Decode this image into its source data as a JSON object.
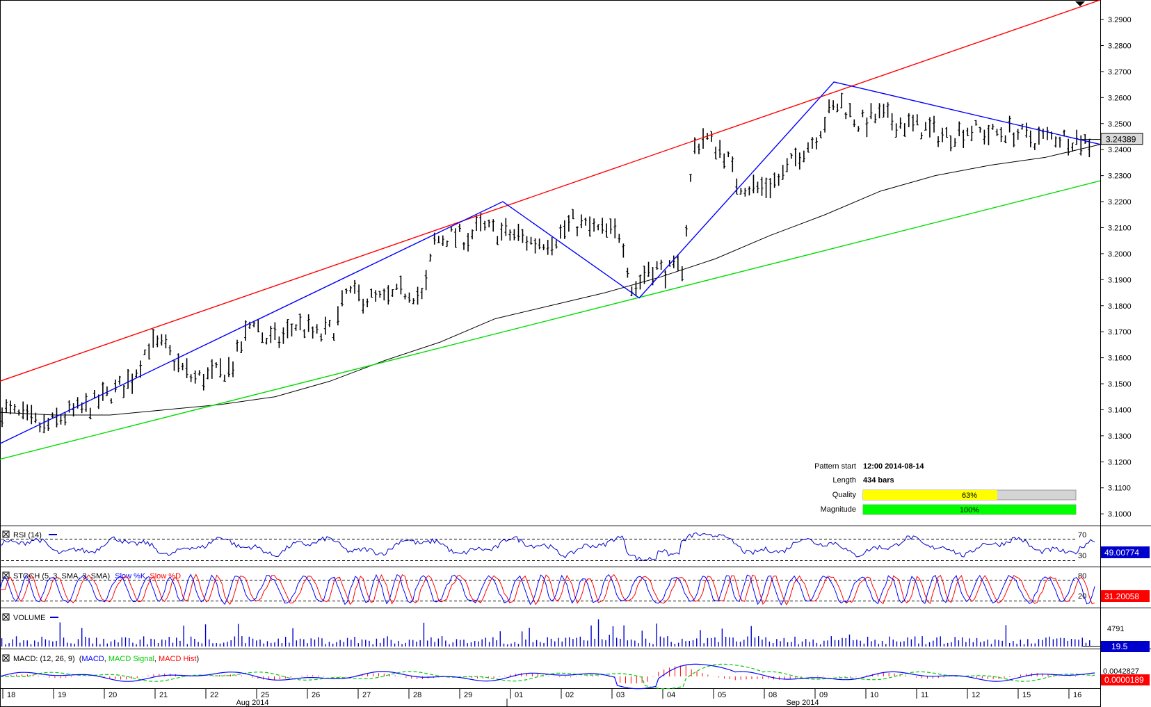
{
  "colors": {
    "channel_upper": "#ff0000",
    "channel_lower": "#00dd00",
    "pattern_line": "#0000ff",
    "moving_average": "#000000",
    "rsi_line": "#0000cc",
    "stoch_k": "#0000ff",
    "stoch_d": "#ff0000",
    "macd_line": "#0000ff",
    "macd_signal": "#00cc00",
    "macd_hist": "#ff0000",
    "quality_fill": "#ffff00",
    "magnitude_fill": "#00ff00",
    "value_box_blue": "#0000cc"
  },
  "chart_data": {
    "type": "line",
    "price_axis": {
      "ticks": [
        "3.2900",
        "3.2800",
        "3.2700",
        "3.2600",
        "3.2500",
        "3.2400",
        "3.2300",
        "3.2200",
        "3.2100",
        "3.2000",
        "3.1900",
        "3.1800",
        "3.1700",
        "3.1600",
        "3.1500",
        "3.1400",
        "3.1300",
        "3.1200",
        "3.1100",
        "3.1000"
      ],
      "ylim": [
        3.0955,
        3.2975
      ],
      "current_price_label": "3.24389",
      "current_price": 3.24389
    },
    "x_axis": {
      "day_labels": [
        "18",
        "19",
        "20",
        "21",
        "22",
        "25",
        "26",
        "27",
        "28",
        "29",
        "01",
        "02",
        "03",
        "04",
        "05",
        "08",
        "09",
        "10",
        "11",
        "12",
        "15",
        "16"
      ],
      "month_labels": [
        "Aug 2014",
        "Sep 2014"
      ]
    },
    "channel": {
      "upper": [
        [
          0,
          3.151
        ],
        [
          100,
          3.2975
        ]
      ],
      "lower": [
        [
          0,
          3.121
        ],
        [
          100,
          3.228
        ]
      ]
    },
    "pattern_zigzag": [
      [
        0,
        3.127
      ],
      [
        45.7,
        3.22
      ],
      [
        58.1,
        3.183
      ],
      [
        75.8,
        3.266
      ],
      [
        100,
        3.242
      ]
    ],
    "price_path": [
      [
        0,
        3.141
      ],
      [
        2,
        3.137
      ],
      [
        4,
        3.133
      ],
      [
        6,
        3.138
      ],
      [
        8,
        3.141
      ],
      [
        10,
        3.146
      ],
      [
        12,
        3.152
      ],
      [
        13.5,
        3.165
      ],
      [
        15,
        3.164
      ],
      [
        16,
        3.158
      ],
      [
        17.5,
        3.152
      ],
      [
        19,
        3.153
      ],
      [
        21,
        3.156
      ],
      [
        22.5,
        3.17
      ],
      [
        23,
        3.176
      ],
      [
        24,
        3.167
      ],
      [
        25.5,
        3.167
      ],
      [
        27,
        3.173
      ],
      [
        29,
        3.168
      ],
      [
        30.5,
        3.172
      ],
      [
        31.5,
        3.185
      ],
      [
        33,
        3.183
      ],
      [
        35,
        3.182
      ],
      [
        37,
        3.186
      ],
      [
        38.5,
        3.183
      ],
      [
        39.5,
        3.205
      ],
      [
        41,
        3.207
      ],
      [
        42.5,
        3.206
      ],
      [
        43.5,
        3.21
      ],
      [
        45.5,
        3.208
      ],
      [
        47,
        3.207
      ],
      [
        48.5,
        3.204
      ],
      [
        50.5,
        3.206
      ],
      [
        52,
        3.212
      ],
      [
        53.5,
        3.21
      ],
      [
        55,
        3.208
      ],
      [
        56.5,
        3.208
      ],
      [
        57.5,
        3.185
      ],
      [
        59,
        3.195
      ],
      [
        61,
        3.193
      ],
      [
        62,
        3.195
      ],
      [
        62.5,
        3.215
      ],
      [
        63,
        3.24
      ],
      [
        64,
        3.245
      ],
      [
        66,
        3.238
      ],
      [
        67,
        3.227
      ],
      [
        69,
        3.225
      ],
      [
        71,
        3.229
      ],
      [
        72.5,
        3.238
      ],
      [
        74,
        3.244
      ],
      [
        75.5,
        3.255
      ],
      [
        76.5,
        3.258
      ],
      [
        78,
        3.25
      ],
      [
        80,
        3.253
      ],
      [
        82,
        3.25
      ],
      [
        84,
        3.248
      ],
      [
        86,
        3.245
      ],
      [
        88,
        3.248
      ],
      [
        90,
        3.246
      ],
      [
        92,
        3.247
      ],
      [
        94,
        3.244
      ],
      [
        96,
        3.245
      ],
      [
        98,
        3.244
      ],
      [
        100,
        3.241
      ]
    ],
    "moving_average": [
      [
        0,
        3.139
      ],
      [
        5,
        3.138
      ],
      [
        10,
        3.138
      ],
      [
        15,
        3.14
      ],
      [
        20,
        3.142
      ],
      [
        25,
        3.145
      ],
      [
        30,
        3.151
      ],
      [
        35,
        3.159
      ],
      [
        40,
        3.166
      ],
      [
        45,
        3.175
      ],
      [
        50,
        3.18
      ],
      [
        55,
        3.185
      ],
      [
        60,
        3.191
      ],
      [
        65,
        3.198
      ],
      [
        70,
        3.207
      ],
      [
        75,
        3.215
      ],
      [
        80,
        3.224
      ],
      [
        85,
        3.23
      ],
      [
        90,
        3.234
      ],
      [
        95,
        3.237
      ],
      [
        100,
        3.242
      ]
    ],
    "pattern_info": {
      "pattern_start_label": "Pattern start",
      "pattern_start_value": "12:00 2014-08-14",
      "length_label": "Length",
      "length_value": "434 bars",
      "quality_label": "Quality",
      "quality_text": "63%",
      "quality": 0.63,
      "magnitude_label": "Magnitude",
      "magnitude_text": "100%",
      "magnitude": 1.0
    },
    "rsi": {
      "title": "RSI (14)",
      "level_high": "70",
      "level_low": "30",
      "value_label": "49.00774",
      "ylim": [
        10,
        90
      ]
    },
    "stoch": {
      "title": "STOCH (5, 3, SMA, 3, SMA)",
      "legend_k": "Slow %K",
      "legend_d": "Slow %D",
      "level_high": "80",
      "level_low": "20",
      "value_label": "31.20058",
      "ylim": [
        0,
        100
      ]
    },
    "volume": {
      "title": "VOLUME",
      "tick_label": "4791",
      "value_label": "19.5"
    },
    "macd": {
      "title_prefix": "MACD: (12, 26, 9)",
      "legend_macd": "MACD",
      "legend_signal": "MACD Signal",
      "legend_hist": "MACD Hist",
      "tick_label": "0.0042827",
      "value_label": "0.0000189"
    }
  }
}
